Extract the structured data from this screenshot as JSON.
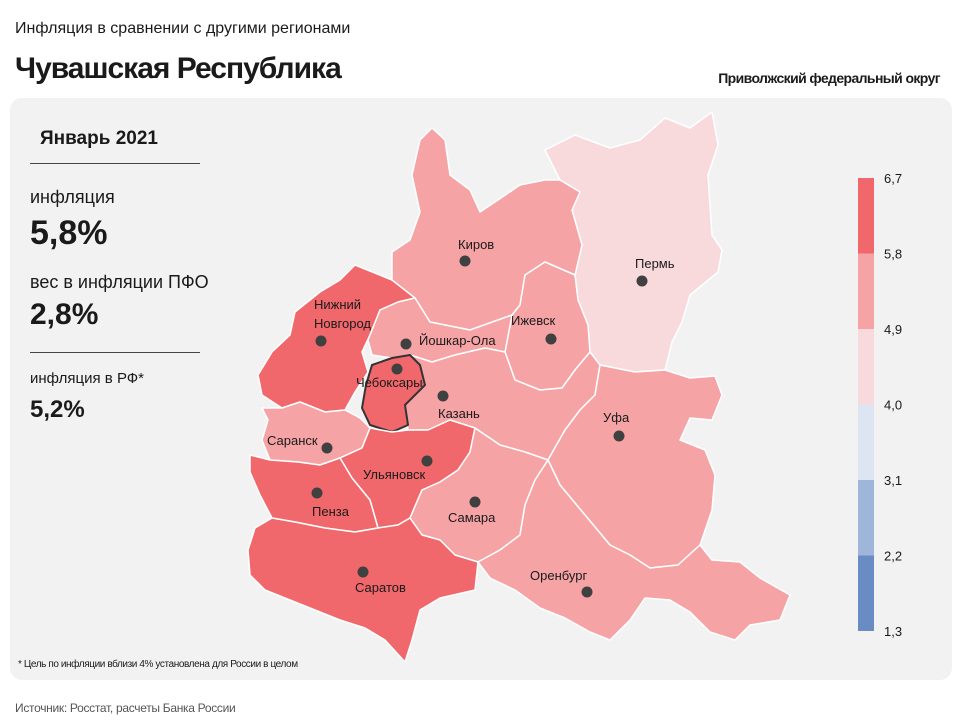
{
  "header": {
    "subtitle": "Инфляция в сравнении с другими регионами",
    "title": "Чувашская Республика",
    "district": "Приволжский федеральный округ"
  },
  "sidebar": {
    "period": "Январь 2021",
    "inflation_label": "инфляция",
    "inflation_value": "5,8%",
    "weight_label": "вес в инфляции  ПФО",
    "weight_value": "2,8%",
    "rf_label": "инфляция  в РФ*",
    "rf_value": "5,2%"
  },
  "footnote": "* Цель по инфляции вблизи 4% установлена для России в целом",
  "source": "Источник: Росстат, расчеты Банка России",
  "legend": {
    "ticks": [
      "6,7",
      "5,8",
      "4,9",
      "4,0",
      "3,1",
      "2,2",
      "1,3"
    ],
    "colors": [
      "#f0686b",
      "#f5a3a5",
      "#f8d9dc",
      "#dde4f2",
      "#9fb6db",
      "#6a8cc5"
    ]
  },
  "cities": {
    "kirov": "Киров",
    "perm": "Пермь",
    "nnovgorod_1": "Нижний",
    "nnovgorod_2": "Новгород",
    "yoshkar": "Йошкар-Ола",
    "izhevsk": "Ижевск",
    "cheboksary": "Чебоксары",
    "kazan": "Казань",
    "saransk": "Саранск",
    "ufa": "Уфа",
    "ulyanovsk": "Ульяновск",
    "penza": "Пенза",
    "samara": "Самара",
    "orenburg": "Оренбург",
    "saratov": "Саратов"
  },
  "region_colors": {
    "dark": "#f0686b",
    "medium": "#f5a3a5",
    "light": "#f8d9dc"
  }
}
